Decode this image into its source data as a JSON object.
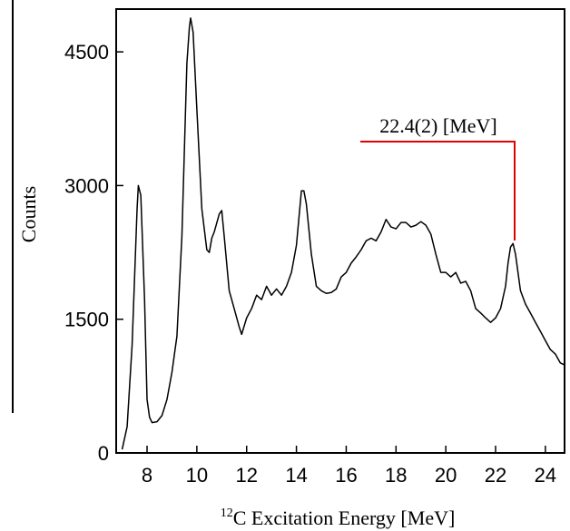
{
  "chart_data": {
    "type": "line",
    "ylabel": "Counts",
    "xlabel": [
      "12",
      "C Excitation Energy [MeV]"
    ],
    "annotation": "22.4(2) [MeV]",
    "color": "#000000",
    "annotation_color": "#e00000",
    "xlim": [
      6.76,
      24.77
    ],
    "ylim": [
      0,
      4980
    ],
    "xticks": [
      8,
      10,
      12,
      14,
      16,
      18,
      20,
      22,
      24
    ],
    "yticks": [
      0,
      1500,
      3000,
      4500
    ],
    "x": [
      7.0,
      7.2,
      7.4,
      7.6,
      7.65,
      7.75,
      7.9,
      8.0,
      8.1,
      8.2,
      8.4,
      8.6,
      8.8,
      9.0,
      9.2,
      9.4,
      9.6,
      9.7,
      9.75,
      9.85,
      10.0,
      10.2,
      10.4,
      10.5,
      10.6,
      10.7,
      10.9,
      11.0,
      11.1,
      11.3,
      11.5,
      11.7,
      11.8,
      12.0,
      12.2,
      12.4,
      12.6,
      12.8,
      13.0,
      13.2,
      13.4,
      13.6,
      13.8,
      14.0,
      14.2,
      14.3,
      14.4,
      14.6,
      14.8,
      15.0,
      15.2,
      15.4,
      15.6,
      15.8,
      16.0,
      16.2,
      16.4,
      16.6,
      16.8,
      17.0,
      17.2,
      17.4,
      17.6,
      17.8,
      18.0,
      18.2,
      18.4,
      18.6,
      18.8,
      19.0,
      19.2,
      19.4,
      19.6,
      19.8,
      20.0,
      20.2,
      20.4,
      20.6,
      20.8,
      21.0,
      21.2,
      21.4,
      21.6,
      21.8,
      22.0,
      22.2,
      22.4,
      22.5,
      22.6,
      22.7,
      22.8,
      23.0,
      23.2,
      23.4,
      23.6,
      23.8,
      24.0,
      24.2,
      24.4,
      24.6,
      24.75
    ],
    "values": [
      40,
      295,
      1210,
      2740,
      3000,
      2890,
      1720,
      600,
      400,
      340,
      350,
      420,
      600,
      905,
      1310,
      2430,
      4370,
      4775,
      4880,
      4720,
      3860,
      2740,
      2280,
      2250,
      2410,
      2480,
      2680,
      2720,
      2430,
      1820,
      1620,
      1415,
      1330,
      1515,
      1620,
      1770,
      1720,
      1870,
      1770,
      1840,
      1770,
      1870,
      2025,
      2330,
      2940,
      2940,
      2790,
      2230,
      1870,
      1820,
      1790,
      1800,
      1840,
      1975,
      2025,
      2130,
      2200,
      2280,
      2380,
      2410,
      2380,
      2480,
      2620,
      2535,
      2515,
      2585,
      2585,
      2535,
      2555,
      2595,
      2555,
      2455,
      2230,
      2025,
      2025,
      1975,
      2025,
      1905,
      1925,
      1820,
      1620,
      1570,
      1515,
      1465,
      1515,
      1620,
      1870,
      2130,
      2310,
      2350,
      2230,
      1820,
      1670,
      1570,
      1465,
      1365,
      1260,
      1160,
      1110,
      1010,
      990
    ]
  }
}
